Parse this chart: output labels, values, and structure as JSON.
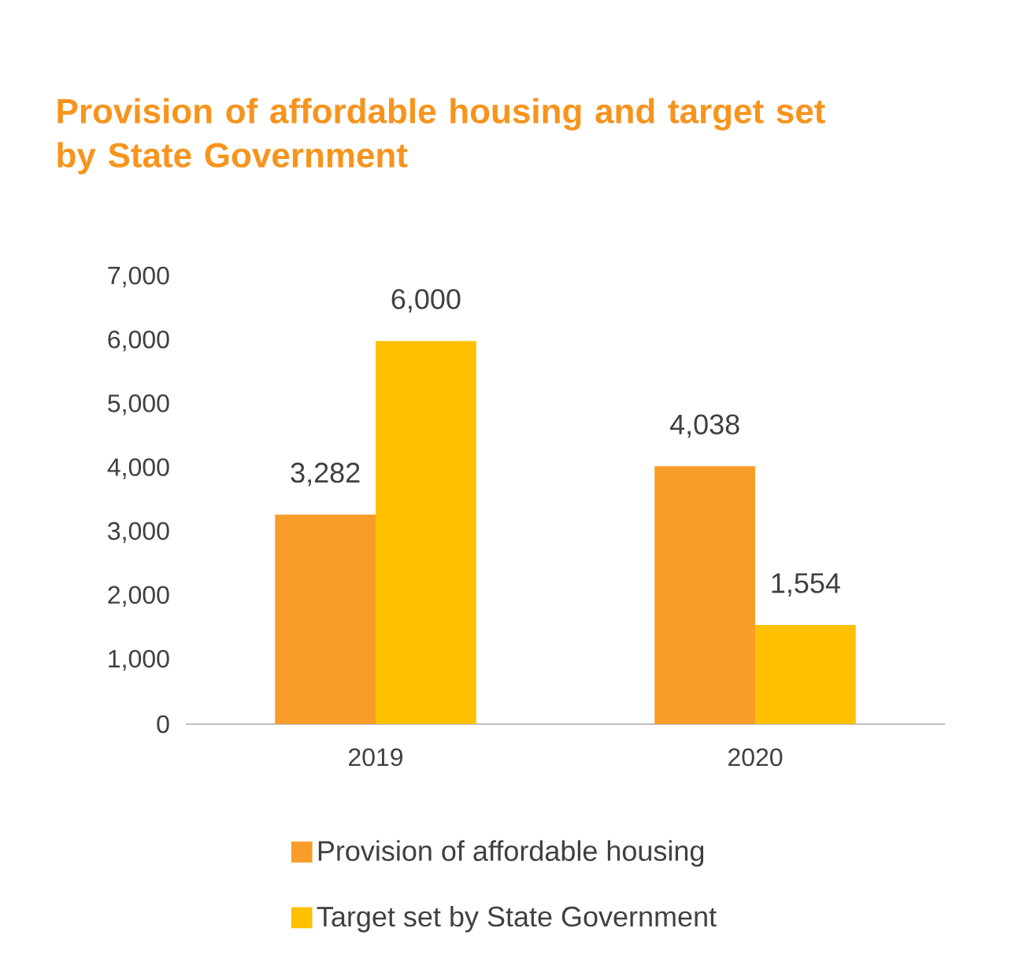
{
  "chart_data": {
    "type": "bar",
    "title": "Provision of affordable housing and target set by State Government",
    "categories": [
      "2019",
      "2020"
    ],
    "series": [
      {
        "name": "Provision of affordable housing",
        "color": "#f99d2a",
        "values": [
          3282,
          4038
        ],
        "value_labels": [
          "3,282",
          "4,038"
        ]
      },
      {
        "name": "Target set by State Government",
        "color": "#ffc000",
        "values": [
          6000,
          1554
        ],
        "value_labels": [
          "6,000",
          "1,554"
        ]
      }
    ],
    "ylim": [
      0,
      7000
    ],
    "yticks": [
      {
        "value": 0,
        "label": "0"
      },
      {
        "value": 1000,
        "label": "1,000"
      },
      {
        "value": 2000,
        "label": "2,000"
      },
      {
        "value": 3000,
        "label": "3,000"
      },
      {
        "value": 4000,
        "label": "4,000"
      },
      {
        "value": 5000,
        "label": "5,000"
      },
      {
        "value": 6000,
        "label": "6,000"
      },
      {
        "value": 7000,
        "label": "7,000"
      }
    ],
    "legend": "bottom"
  }
}
